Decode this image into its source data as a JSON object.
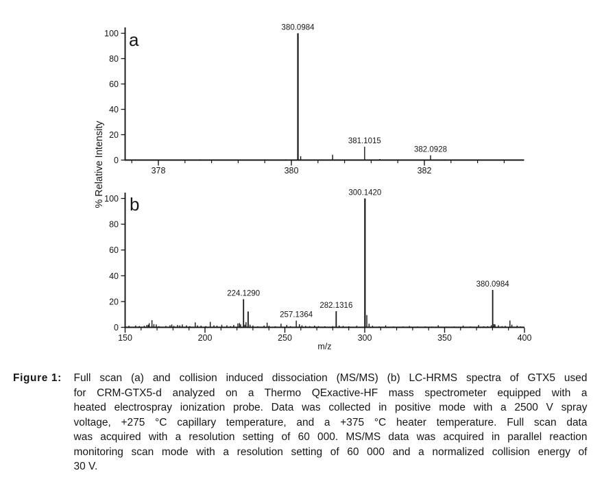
{
  "figure": {
    "label": "Figure 1:",
    "caption": "Full scan (a) and collision induced dissociation (MS/MS) (b) LC-HRMS spectra of GTX5 used for CRM-GTX5-d analyzed on a Thermo QExactive-HF mass spectrometer equipped with a heated electrospray ionization probe. Data was collected in positive mode with a 2500 V spray voltage, +275 °C capillary temperature, and a +375 °C heater temperature. Full scan data was acquired with a resolution setting of 60 000. MS/MS data was acquired in parallel reaction monitoring scan mode with a resolution setting of 60 000 and a normalized collision energy of 30 V.",
    "caption_lines": [
      "Full scan (a) and collision induced dissociation (MS/MS) (b) LC-HRMS spectra of GTX5 used",
      "for CRM-GTX5-d analyzed on a Thermo QExactive-HF mass spectrometer equipped with a",
      "heated electrospray ionization probe. Data was collected in positive mode with a 2500 V spray",
      "voltage, +275 °C capillary temperature, and a +375 °C heater temperature. Full scan data",
      "was acquired with a resolution setting of 60 000. MS/MS data was acquired in parallel reaction",
      "monitoring scan mode with a resolution setting of 60 000 and a normalized collision energy of",
      "30 V."
    ]
  },
  "colors": {
    "ink": "#161616",
    "background": "#ffffff"
  },
  "shared_ylabel": "% Relative Intensity",
  "shared_xlabel": "m/z",
  "chart_data": [
    {
      "type": "bar",
      "subtype": "mass-spectrum",
      "panel_letter": "a",
      "title": "",
      "xlabel": "m/z",
      "ylabel": "% Relative Intensity",
      "xlim": [
        377.5,
        383.5
      ],
      "ylim": [
        0,
        100
      ],
      "x_major_ticks": [
        378,
        380,
        382
      ],
      "x_minor_start": 377.6,
      "x_minor_step": 0.4,
      "y_major_ticks": [
        0,
        20,
        40,
        60,
        80,
        100
      ],
      "grid": "off",
      "legend": "none",
      "labeled_peaks": [
        {
          "mz": 380.0984,
          "intensity": 100,
          "label": "380.0984"
        },
        {
          "mz": 381.1015,
          "intensity": 10.5,
          "label": "381.1015"
        },
        {
          "mz": 382.0928,
          "intensity": 3.8,
          "label": "382.0928"
        }
      ],
      "peaks": [
        [
          378.3,
          0.4
        ],
        [
          378.62,
          0.6
        ],
        [
          378.76,
          0.5
        ],
        [
          379.1,
          0.5
        ],
        [
          379.35,
          0.4
        ],
        [
          379.6,
          0.6
        ],
        [
          379.78,
          0.5
        ],
        [
          379.92,
          0.6
        ],
        [
          380.0984,
          100
        ],
        [
          380.14,
          3.0
        ],
        [
          380.62,
          4.2
        ],
        [
          381.1015,
          10.5
        ],
        [
          381.33,
          0.8
        ],
        [
          382.0928,
          3.8
        ],
        [
          382.3,
          0.6
        ],
        [
          382.8,
          0.5
        ],
        [
          383.2,
          0.4
        ]
      ]
    },
    {
      "type": "bar",
      "subtype": "mass-spectrum",
      "panel_letter": "b",
      "title": "",
      "xlabel": "m/z",
      "ylabel": "% Relative Intensity",
      "xlim": [
        150,
        400
      ],
      "ylim": [
        0,
        100
      ],
      "x_major_ticks": [
        150,
        200,
        250,
        300,
        350,
        400
      ],
      "x_minor_start": 150,
      "x_minor_step": 10,
      "y_major_ticks": [
        0,
        20,
        40,
        60,
        80,
        100
      ],
      "grid": "off",
      "legend": "none",
      "labeled_peaks": [
        {
          "mz": 224.129,
          "intensity": 21.8,
          "label": "224.1290"
        },
        {
          "mz": 257.1364,
          "intensity": 5.2,
          "label": "257.1364"
        },
        {
          "mz": 282.1316,
          "intensity": 12.5,
          "label": "282.1316"
        },
        {
          "mz": 300.142,
          "intensity": 100,
          "label": "300.1420"
        },
        {
          "mz": 380.0984,
          "intensity": 29,
          "label": "380.0984"
        }
      ],
      "peaks": [
        [
          152.4,
          1.2
        ],
        [
          156.6,
          1.4
        ],
        [
          158.9,
          1.0
        ],
        [
          162.0,
          1.2
        ],
        [
          163.6,
          1.8
        ],
        [
          164.5,
          2.0
        ],
        [
          165.1,
          3.2
        ],
        [
          166.8,
          5.5
        ],
        [
          168.0,
          2.5
        ],
        [
          169.5,
          2.2
        ],
        [
          171.2,
          0.9
        ],
        [
          175.5,
          1.1
        ],
        [
          178.1,
          1.6
        ],
        [
          179.2,
          2.2
        ],
        [
          180.5,
          1.1
        ],
        [
          182.8,
          1.8
        ],
        [
          184.2,
          1.5
        ],
        [
          185.8,
          2.2
        ],
        [
          188.4,
          1.5
        ],
        [
          190.5,
          0.9
        ],
        [
          193.9,
          3.8
        ],
        [
          195.3,
          1.5
        ],
        [
          197.5,
          1.3
        ],
        [
          200.5,
          0.9
        ],
        [
          203.3,
          4.2
        ],
        [
          205.6,
          1.5
        ],
        [
          207.5,
          1.3
        ],
        [
          210.5,
          2.0
        ],
        [
          213.7,
          1.5
        ],
        [
          216.0,
          0.9
        ],
        [
          218.0,
          1.8
        ],
        [
          220.6,
          3.0
        ],
        [
          221.6,
          3.3
        ],
        [
          222.3,
          2.3
        ],
        [
          224.129,
          21.8
        ],
        [
          225.0,
          2.0
        ],
        [
          225.7,
          4.0
        ],
        [
          227.0,
          12.3
        ],
        [
          228.2,
          2.0
        ],
        [
          230.0,
          1.4
        ],
        [
          233.0,
          0.8
        ],
        [
          237.0,
          1.3
        ],
        [
          238.9,
          3.6
        ],
        [
          240.1,
          1.2
        ],
        [
          244.0,
          0.8
        ],
        [
          247.6,
          2.8
        ],
        [
          251.2,
          1.8
        ],
        [
          253.5,
          0.9
        ],
        [
          257.1364,
          5.2
        ],
        [
          259.1,
          2.4
        ],
        [
          260.7,
          1.5
        ],
        [
          263.0,
          1.1
        ],
        [
          265.5,
          0.9
        ],
        [
          268.6,
          1.3
        ],
        [
          271.0,
          0.9
        ],
        [
          275.0,
          0.8
        ],
        [
          280.0,
          0.9
        ],
        [
          282.1316,
          12.5
        ],
        [
          284.0,
          1.4
        ],
        [
          286.5,
          1.1
        ],
        [
          290.0,
          0.8
        ],
        [
          295.0,
          1.2
        ],
        [
          300.142,
          100
        ],
        [
          301.3,
          9.5
        ],
        [
          302.7,
          2.8
        ],
        [
          304.9,
          1.2
        ],
        [
          309.0,
          0.7
        ],
        [
          313.1,
          1.5
        ],
        [
          318.0,
          0.7
        ],
        [
          324.0,
          0.7
        ],
        [
          328.0,
          1.0
        ],
        [
          333.0,
          0.7
        ],
        [
          338.0,
          0.7
        ],
        [
          342.0,
          0.6
        ],
        [
          346.0,
          1.6
        ],
        [
          351.0,
          0.6
        ],
        [
          356.0,
          0.7
        ],
        [
          361.6,
          1.3
        ],
        [
          366.0,
          0.7
        ],
        [
          371.3,
          1.8
        ],
        [
          374.5,
          0.8
        ],
        [
          377.0,
          0.9
        ],
        [
          379.2,
          1.6
        ],
        [
          380.0984,
          29
        ],
        [
          380.9,
          2.5
        ],
        [
          381.6,
          2.2
        ],
        [
          383.7,
          1.6
        ],
        [
          386.0,
          0.9
        ],
        [
          388.0,
          1.1
        ],
        [
          390.9,
          5.3
        ],
        [
          392.1,
          2.0
        ],
        [
          395.4,
          1.3
        ],
        [
          397.5,
          0.7
        ]
      ]
    }
  ]
}
